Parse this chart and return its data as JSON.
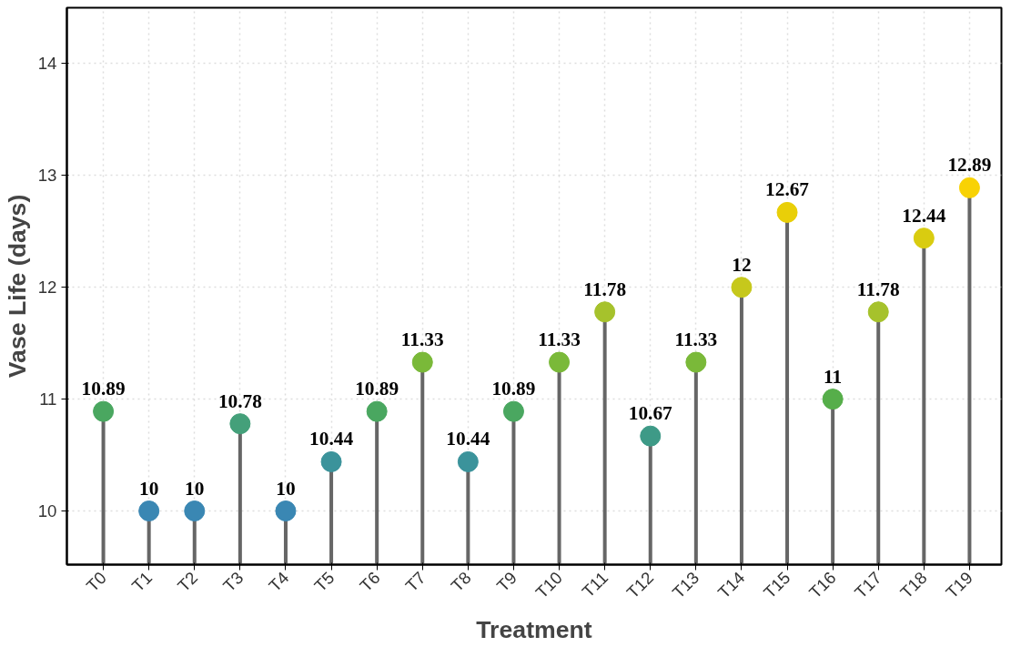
{
  "chart_data": {
    "type": "lollipop",
    "xlabel": "Treatment",
    "ylabel": "Vase Life (days)",
    "categories": [
      "T0",
      "T1",
      "T2",
      "T3",
      "T4",
      "T5",
      "T6",
      "T7",
      "T8",
      "T9",
      "T10",
      "T11",
      "T12",
      "T13",
      "T14",
      "T15",
      "T16",
      "T17",
      "T18",
      "T19"
    ],
    "values": [
      10.89,
      10,
      10,
      10.78,
      10,
      10.44,
      10.89,
      11.33,
      10.44,
      10.89,
      11.33,
      11.78,
      10.67,
      11.33,
      12,
      12.67,
      11,
      11.78,
      12.44,
      12.89
    ],
    "colors": [
      "#4aa760",
      "#3a87b3",
      "#3a87b3",
      "#44a07a",
      "#3a87b3",
      "#3b939b",
      "#4aa760",
      "#7ab939",
      "#3b939b",
      "#4aa760",
      "#7ab939",
      "#a6c22c",
      "#3e9a87",
      "#7ab939",
      "#c6c81c",
      "#e9cf08",
      "#56ae4a",
      "#a6c22c",
      "#d9cc10",
      "#f8d204"
    ],
    "ylim": [
      9.52,
      14.5
    ],
    "yticks": [
      10,
      11,
      12,
      13,
      14
    ],
    "grid": true,
    "marker": "circle",
    "data_labels": true
  }
}
